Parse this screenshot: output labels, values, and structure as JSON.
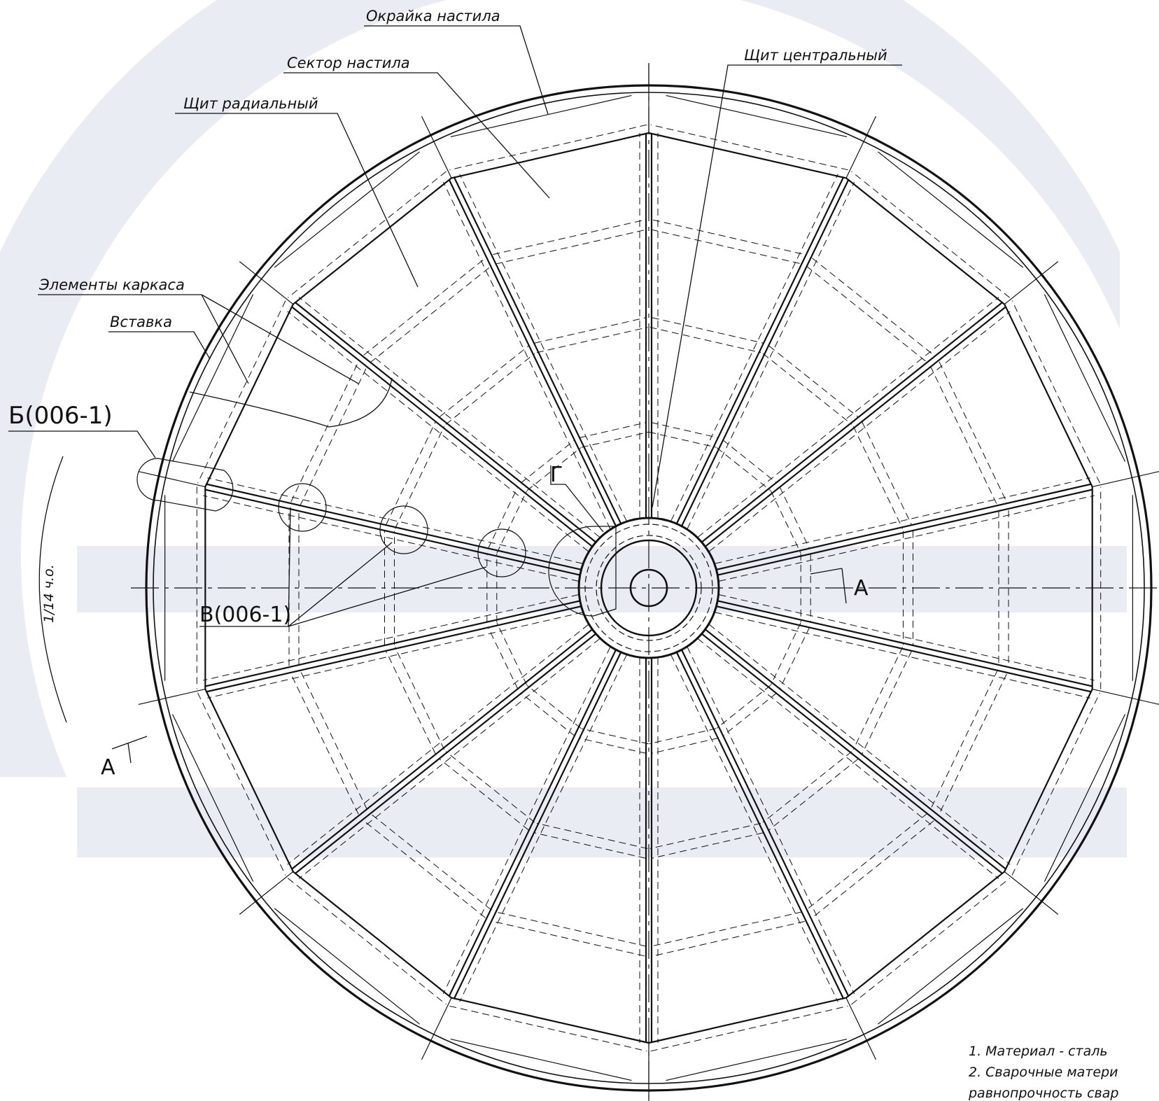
{
  "labels": {
    "okraika": "Окрайка настила",
    "central_shield": "Щит центральный",
    "sector": "Сектор настила",
    "radial_shield": "Щит радиальный",
    "frame_elements": "Элементы каркаса",
    "insert": "Вставка",
    "detail_b": "Б(006-1)",
    "detail_v": "В(006-1)",
    "detail_g": "Г",
    "section_a": "А",
    "angle_dim": "1/14 ч.о."
  },
  "notes": [
    "1. Материал - сталь",
    "2. Сварочные матери",
    "равнопрочность свар"
  ],
  "colors": {
    "line": "#111111",
    "watermark": "#e9edf3"
  }
}
